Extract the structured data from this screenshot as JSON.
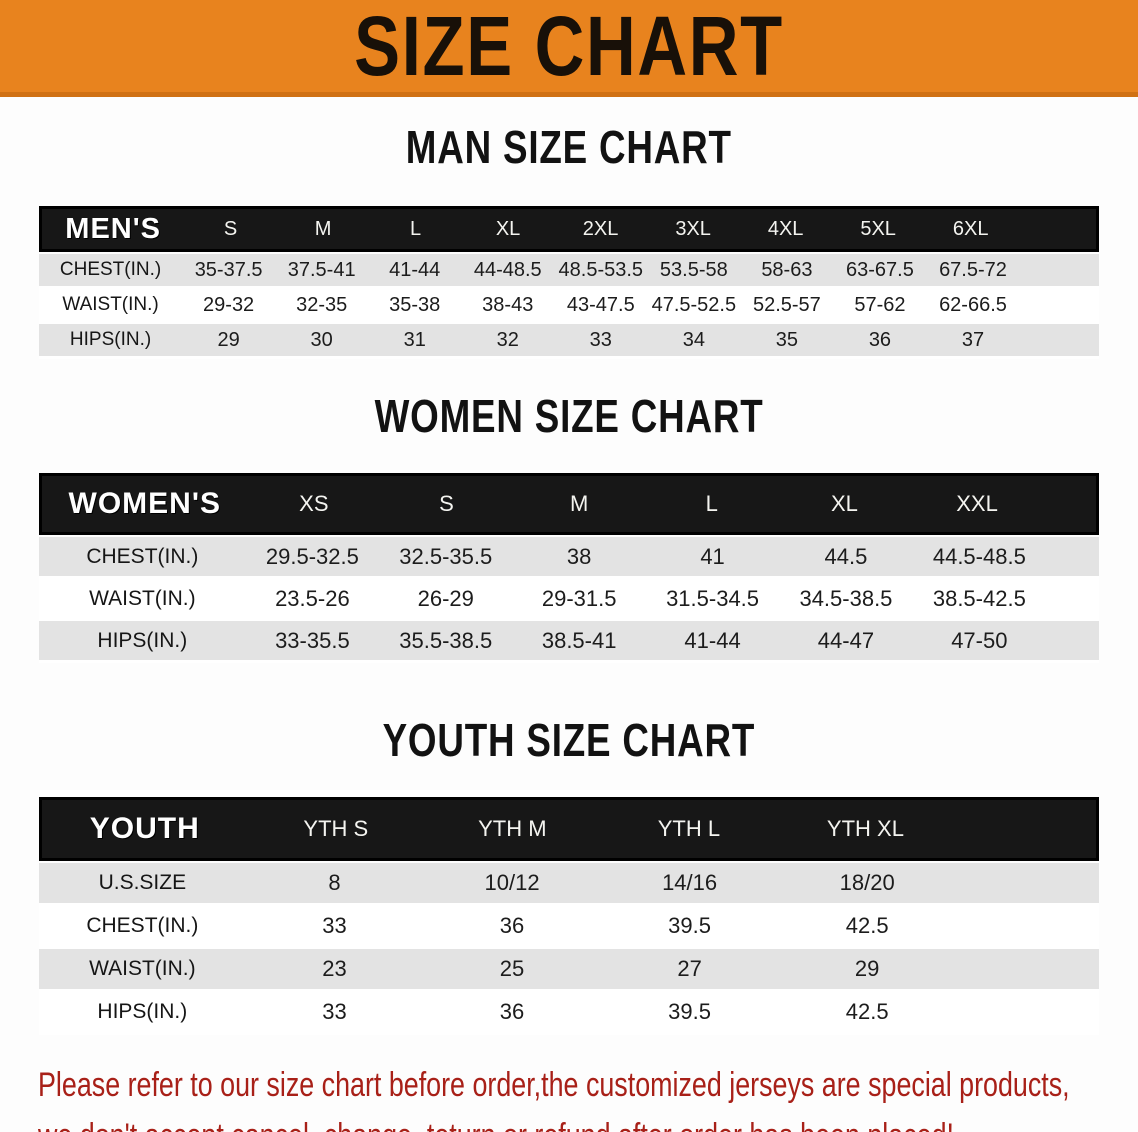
{
  "banner": {
    "title": "SIZE CHART"
  },
  "sections": [
    {
      "id": "men",
      "heading": "MAN SIZE CHART",
      "label_header": "MEN'S",
      "columns": [
        "S",
        "M",
        "L",
        "XL",
        "2XL",
        "3XL",
        "4XL",
        "5XL",
        "6XL"
      ],
      "rows": [
        {
          "label": "CHEST(IN.)",
          "values": [
            "35-37.5",
            "37.5-41",
            "41-44",
            "44-48.5",
            "48.5-53.5",
            "53.5-58",
            "58-63",
            "63-67.5",
            "67.5-72"
          ]
        },
        {
          "label": "WAIST(IN.)",
          "values": [
            "29-32",
            "32-35",
            "35-38",
            "38-43",
            "43-47.5",
            "47.5-52.5",
            "52.5-57",
            "57-62",
            "62-66.5"
          ]
        },
        {
          "label": "HIPS(IN.)",
          "values": [
            "29",
            "30",
            "31",
            "32",
            "33",
            "34",
            "35",
            "36",
            "37"
          ]
        }
      ]
    },
    {
      "id": "women",
      "heading": "WOMEN SIZE CHART",
      "label_header": "WOMEN'S",
      "columns": [
        "XS",
        "S",
        "M",
        "L",
        "XL",
        "XXL"
      ],
      "rows": [
        {
          "label": "CHEST(IN.)",
          "values": [
            "29.5-32.5",
            "32.5-35.5",
            "38",
            "41",
            "44.5",
            "44.5-48.5"
          ]
        },
        {
          "label": "WAIST(IN.)",
          "values": [
            "23.5-26",
            "26-29",
            "29-31.5",
            "31.5-34.5",
            "34.5-38.5",
            "38.5-42.5"
          ]
        },
        {
          "label": "HIPS(IN.)",
          "values": [
            "33-35.5",
            "35.5-38.5",
            "38.5-41",
            "41-44",
            "44-47",
            "47-50"
          ]
        }
      ]
    },
    {
      "id": "youth",
      "heading": "YOUTH SIZE CHART",
      "label_header": "YOUTH",
      "columns": [
        "YTH S",
        "YTH M",
        "YTH L",
        "YTH XL"
      ],
      "rows": [
        {
          "label": "U.S.SIZE",
          "values": [
            "8",
            "10/12",
            "14/16",
            "18/20"
          ]
        },
        {
          "label": "CHEST(IN.)",
          "values": [
            "33",
            "36",
            "39.5",
            "42.5"
          ]
        },
        {
          "label": "WAIST(IN.)",
          "values": [
            "23",
            "25",
            "27",
            "29"
          ]
        },
        {
          "label": "HIPS(IN.)",
          "values": [
            "33",
            "36",
            "39.5",
            "42.5"
          ]
        }
      ]
    }
  ],
  "disclaimer": {
    "line1": "Please refer to our size chart before order,the customized jerseys are special products,",
    "line2": "we don't accept cancel, change, teturn or refund after order has been placed!"
  },
  "colors": {
    "banner_bg": "#E8831E",
    "banner_edge": "#D07114",
    "header_bar": "#171717",
    "shade_row": "#E3E3E3",
    "disclaimer_color": "#A82018"
  }
}
